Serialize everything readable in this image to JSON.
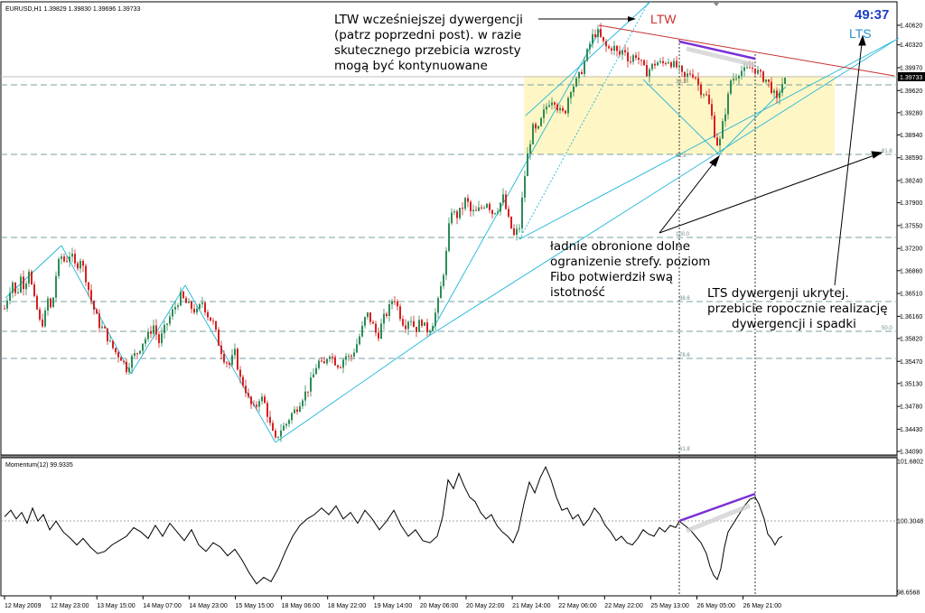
{
  "main_panel": {
    "header": "EURUSD,H1  1.39829 1.39830 1.39696 1.39733",
    "timer": "49:37",
    "current_price_label": "1.39733",
    "ltw_label": "LTW",
    "lts_label": "LTS",
    "annotations": [
      {
        "id": "ltw-note",
        "lines": [
          "LTW wcześniejszej dywergencji",
          "(patrz poprzedni post). w razie",
          "skutecznego przebicia wzrosty",
          "mogą być kontynuowane"
        ]
      },
      {
        "id": "fibo-note",
        "lines": [
          "ładnie obronione dolne",
          "ogranizenie strefy. poziom",
          "Fibo potwierdził swą",
          "istotność"
        ]
      },
      {
        "id": "lts-note",
        "lines": [
          "LTS dywergenji ukrytej.",
          "przebicie ropocznie realizację",
          "dywergencji i spadki"
        ]
      }
    ],
    "fib_labels": [
      "61.8",
      "100.0",
      "38.2",
      "61.8",
      "50.0",
      "38.6",
      "78.6",
      "61.8"
    ],
    "colors": {
      "candle_up": "#2e8b57",
      "candle_down": "#d62020",
      "channel": "#1fb6d8",
      "resistance": "#c83232",
      "divergence": "#7b2fd6",
      "zone": "#fff6c6",
      "timer": "#1c3fc7"
    }
  },
  "momentum_panel": {
    "header": "Momentum(12) 99.9335"
  },
  "chart_data": {
    "type": "candlestick",
    "symbol": "EURUSD",
    "timeframe": "H1",
    "ohlc_last": {
      "open": 1.39829,
      "high": 1.3983,
      "low": 1.39696,
      "close": 1.39733
    },
    "y_ticks": [
      1.4062,
      1.4032,
      1.3997,
      1.3962,
      1.3928,
      1.3894,
      1.3859,
      1.3824,
      1.379,
      1.3755,
      1.372,
      1.3686,
      1.3651,
      1.3616,
      1.3582,
      1.3547,
      1.3513,
      1.3478,
      1.3443,
      1.3409
    ],
    "y_tick_labels": [
      "1.40620",
      "1.40320",
      "1.39970",
      "1.39620",
      "1.39280",
      "1.38940",
      "1.38590",
      "1.38240",
      "1.37900",
      "1.37550",
      "1.37200",
      "1.36860",
      "1.36510",
      "1.36160",
      "1.35820",
      "1.35470",
      "1.35130",
      "1.34780",
      "1.34430",
      "1.34090"
    ],
    "x_tick_labels": [
      "12 May 2009",
      "12 May 23:00",
      "13 May 15:00",
      "14 May 07:00",
      "14 May 23:00",
      "15 May 15:00",
      "18 May 06:00",
      "18 May 22:00",
      "19 May 14:00",
      "20 May 06:00",
      "20 May 22:00",
      "21 May 14:00",
      "22 May 06:00",
      "22 May 22:00",
      "25 May 13:00",
      "26 May 05:00",
      "26 May 21:00"
    ],
    "price_path": [
      [
        0,
        1.3598
      ],
      [
        5,
        1.3628
      ],
      [
        10,
        1.3654
      ],
      [
        14,
        1.3669
      ],
      [
        18,
        1.3643
      ],
      [
        23,
        1.3676
      ],
      [
        27,
        1.366
      ],
      [
        32,
        1.3689
      ],
      [
        37,
        1.3645
      ],
      [
        41,
        1.3626
      ],
      [
        45,
        1.3601
      ],
      [
        49,
        1.3612
      ],
      [
        53,
        1.3642
      ],
      [
        57,
        1.3623
      ],
      [
        62,
        1.3679
      ],
      [
        67,
        1.371
      ],
      [
        72,
        1.3699
      ],
      [
        78,
        1.3713
      ],
      [
        84,
        1.369
      ],
      [
        89,
        1.3705
      ],
      [
        95,
        1.3675
      ],
      [
        100,
        1.3645
      ],
      [
        105,
        1.3622
      ],
      [
        110,
        1.3603
      ],
      [
        116,
        1.3593
      ],
      [
        122,
        1.3574
      ],
      [
        128,
        1.3561
      ],
      [
        134,
        1.3553
      ],
      [
        140,
        1.3536
      ],
      [
        146,
        1.3552
      ],
      [
        152,
        1.3561
      ],
      [
        158,
        1.3577
      ],
      [
        164,
        1.3587
      ],
      [
        170,
        1.3602
      ],
      [
        176,
        1.3576
      ],
      [
        182,
        1.3596
      ],
      [
        188,
        1.3615
      ],
      [
        194,
        1.3631
      ],
      [
        200,
        1.3647
      ],
      [
        206,
        1.3636
      ],
      [
        212,
        1.3629
      ],
      [
        218,
        1.3622
      ],
      [
        224,
        1.3638
      ],
      [
        230,
        1.3618
      ],
      [
        236,
        1.3605
      ],
      [
        242,
        1.3575
      ],
      [
        248,
        1.3552
      ],
      [
        254,
        1.3542
      ],
      [
        260,
        1.356
      ],
      [
        266,
        1.352
      ],
      [
        271,
        1.3508
      ],
      [
        276,
        1.3484
      ],
      [
        282,
        1.3472
      ],
      [
        288,
        1.3495
      ],
      [
        294,
        1.3479
      ],
      [
        300,
        1.3443
      ],
      [
        305,
        1.3425
      ],
      [
        310,
        1.3442
      ],
      [
        316,
        1.3449
      ],
      [
        322,
        1.3465
      ],
      [
        328,
        1.3474
      ],
      [
        334,
        1.3491
      ],
      [
        340,
        1.3502
      ],
      [
        346,
        1.3522
      ],
      [
        352,
        1.3548
      ],
      [
        358,
        1.3537
      ],
      [
        364,
        1.3563
      ],
      [
        370,
        1.3548
      ],
      [
        376,
        1.354
      ],
      [
        382,
        1.3556
      ],
      [
        388,
        1.3552
      ],
      [
        394,
        1.357
      ],
      [
        400,
        1.3593
      ],
      [
        406,
        1.3621
      ],
      [
        412,
        1.3605
      ],
      [
        418,
        1.3584
      ],
      [
        424,
        1.3611
      ],
      [
        430,
        1.3625
      ],
      [
        436,
        1.3648
      ],
      [
        442,
        1.3621
      ],
      [
        448,
        1.3601
      ],
      [
        454,
        1.3616
      ],
      [
        460,
        1.3594
      ],
      [
        466,
        1.3611
      ],
      [
        472,
        1.3594
      ],
      [
        478,
        1.3602
      ],
      [
        484,
        1.363
      ],
      [
        490,
        1.3675
      ],
      [
        495,
        1.3722
      ],
      [
        499,
        1.3782
      ],
      [
        505,
        1.3768
      ],
      [
        511,
        1.378
      ],
      [
        516,
        1.3797
      ],
      [
        521,
        1.3776
      ],
      [
        527,
        1.3775
      ],
      [
        533,
        1.3783
      ],
      [
        539,
        1.3792
      ],
      [
        545,
        1.3775
      ],
      [
        551,
        1.3782
      ],
      [
        557,
        1.3798
      ],
      [
        563,
        1.3763
      ],
      [
        569,
        1.3739
      ],
      [
        575,
        1.3753
      ],
      [
        580,
        1.3822
      ],
      [
        585,
        1.3873
      ],
      [
        590,
        1.3904
      ],
      [
        595,
        1.3897
      ],
      [
        601,
        1.3925
      ],
      [
        607,
        1.3944
      ],
      [
        613,
        1.3951
      ],
      [
        619,
        1.393
      ],
      [
        625,
        1.3926
      ],
      [
        631,
        1.3965
      ],
      [
        637,
        1.3973
      ],
      [
        643,
        1.3989
      ],
      [
        649,
        1.4015
      ],
      [
        655,
        1.4043
      ],
      [
        661,
        1.4053
      ],
      [
        667,
        1.4036
      ],
      [
        673,
        1.4025
      ],
      [
        679,
        1.403
      ],
      [
        685,
        1.4015
      ],
      [
        691,
        1.4027
      ],
      [
        697,
        1.4005
      ],
      [
        703,
        1.4019
      ],
      [
        709,
        1.4005
      ],
      [
        715,
        1.3989
      ],
      [
        721,
        1.3998
      ],
      [
        727,
        1.4006
      ],
      [
        733,
        1.4002
      ],
      [
        739,
        1.401
      ],
      [
        745,
        1.4002
      ],
      [
        751,
        1.3996
      ],
      [
        757,
        1.3979
      ],
      [
        763,
        1.3989
      ],
      [
        769,
        1.3987
      ],
      [
        775,
        1.3963
      ],
      [
        781,
        1.3958
      ],
      [
        787,
        1.393
      ],
      [
        793,
        1.388
      ],
      [
        797,
        1.3885
      ],
      [
        801,
        1.3918
      ],
      [
        805,
        1.3944
      ],
      [
        809,
        1.3978
      ],
      [
        813,
        1.3982
      ],
      [
        819,
        1.3993
      ],
      [
        825,
        1.3991
      ],
      [
        831,
        1.3998
      ],
      [
        837,
        1.3993
      ],
      [
        843,
        1.3983
      ],
      [
        849,
        1.3978
      ],
      [
        855,
        1.3962
      ],
      [
        860,
        1.3945
      ],
      [
        864,
        1.3968
      ],
      [
        868,
        1.3978
      ],
      [
        872,
        1.3973
      ]
    ],
    "momentum": {
      "name": "Momentum(12)",
      "last_value": 99.9335,
      "reference_level": 100.3048,
      "y_ticks": [
        101.6802,
        100.3048,
        98.6568
      ],
      "y_tick_labels": [
        "101.6802",
        "100.3048",
        "98.6568"
      ],
      "path": [
        [
          5,
          100.4
        ],
        [
          12,
          100.55
        ],
        [
          18,
          100.35
        ],
        [
          24,
          100.5
        ],
        [
          30,
          100.25
        ],
        [
          36,
          100.6
        ],
        [
          42,
          100.3
        ],
        [
          48,
          100.45
        ],
        [
          55,
          100.1
        ],
        [
          62,
          100.3
        ],
        [
          70,
          100.05
        ],
        [
          78,
          99.9
        ],
        [
          85,
          99.75
        ],
        [
          92,
          99.9
        ],
        [
          100,
          99.7
        ],
        [
          108,
          99.55
        ],
        [
          116,
          99.6
        ],
        [
          124,
          99.75
        ],
        [
          132,
          99.85
        ],
        [
          140,
          99.95
        ],
        [
          148,
          100.15
        ],
        [
          156,
          100.05
        ],
        [
          164,
          99.9
        ],
        [
          172,
          100.2
        ],
        [
          180,
          99.95
        ],
        [
          188,
          100.25
        ],
        [
          196,
          100.05
        ],
        [
          204,
          99.85
        ],
        [
          212,
          100.1
        ],
        [
          220,
          99.75
        ],
        [
          228,
          99.6
        ],
        [
          236,
          99.8
        ],
        [
          244,
          99.7
        ],
        [
          252,
          99.5
        ],
        [
          260,
          99.65
        ],
        [
          268,
          99.4
        ],
        [
          276,
          99.1
        ],
        [
          284,
          98.85
        ],
        [
          292,
          99.0
        ],
        [
          300,
          98.9
        ],
        [
          308,
          99.2
        ],
        [
          316,
          99.6
        ],
        [
          324,
          99.95
        ],
        [
          332,
          100.2
        ],
        [
          340,
          100.35
        ],
        [
          348,
          100.45
        ],
        [
          356,
          100.6
        ],
        [
          364,
          100.45
        ],
        [
          372,
          100.65
        ],
        [
          380,
          100.35
        ],
        [
          388,
          100.5
        ],
        [
          396,
          100.25
        ],
        [
          404,
          100.55
        ],
        [
          412,
          100.35
        ],
        [
          420,
          100.1
        ],
        [
          428,
          100.3
        ],
        [
          436,
          100.55
        ],
        [
          444,
          100.2
        ],
        [
          452,
          99.95
        ],
        [
          460,
          100.1
        ],
        [
          468,
          99.85
        ],
        [
          476,
          99.8
        ],
        [
          484,
          99.95
        ],
        [
          490,
          100.4
        ],
        [
          496,
          101.25
        ],
        [
          502,
          101.05
        ],
        [
          508,
          101.4
        ],
        [
          514,
          101.1
        ],
        [
          520,
          100.85
        ],
        [
          526,
          100.75
        ],
        [
          532,
          100.5
        ],
        [
          538,
          100.35
        ],
        [
          544,
          100.45
        ],
        [
          550,
          100.2
        ],
        [
          556,
          100.05
        ],
        [
          562,
          99.95
        ],
        [
          568,
          99.8
        ],
        [
          574,
          100.1
        ],
        [
          580,
          100.7
        ],
        [
          586,
          101.2
        ],
        [
          592,
          100.95
        ],
        [
          598,
          101.3
        ],
        [
          604,
          101.55
        ],
        [
          610,
          101.25
        ],
        [
          616,
          100.85
        ],
        [
          622,
          100.55
        ],
        [
          628,
          100.6
        ],
        [
          634,
          100.35
        ],
        [
          640,
          100.45
        ],
        [
          646,
          100.2
        ],
        [
          652,
          100.35
        ],
        [
          658,
          100.6
        ],
        [
          664,
          100.45
        ],
        [
          670,
          100.2
        ],
        [
          676,
          100.05
        ],
        [
          682,
          99.85
        ],
        [
          688,
          99.95
        ],
        [
          694,
          99.8
        ],
        [
          700,
          99.75
        ],
        [
          706,
          99.9
        ],
        [
          712,
          100.1
        ],
        [
          718,
          100.0
        ],
        [
          724,
          99.95
        ],
        [
          730,
          100.15
        ],
        [
          736,
          100.05
        ],
        [
          742,
          100.2
        ],
        [
          748,
          100.15
        ],
        [
          752,
          100.3
        ],
        [
          758,
          100.2
        ],
        [
          764,
          100.1
        ],
        [
          770,
          99.95
        ],
        [
          776,
          99.8
        ],
        [
          782,
          99.55
        ],
        [
          786,
          99.25
        ],
        [
          790,
          99.05
        ],
        [
          794,
          98.95
        ],
        [
          798,
          99.2
        ],
        [
          802,
          99.7
        ],
        [
          806,
          100.05
        ],
        [
          812,
          100.25
        ],
        [
          818,
          100.45
        ],
        [
          824,
          100.65
        ],
        [
          830,
          100.8
        ],
        [
          836,
          100.85
        ],
        [
          840,
          100.7
        ],
        [
          846,
          100.35
        ],
        [
          850,
          100.0
        ],
        [
          854,
          99.9
        ],
        [
          858,
          99.75
        ],
        [
          862,
          99.9
        ],
        [
          866,
          99.95
        ]
      ]
    }
  }
}
